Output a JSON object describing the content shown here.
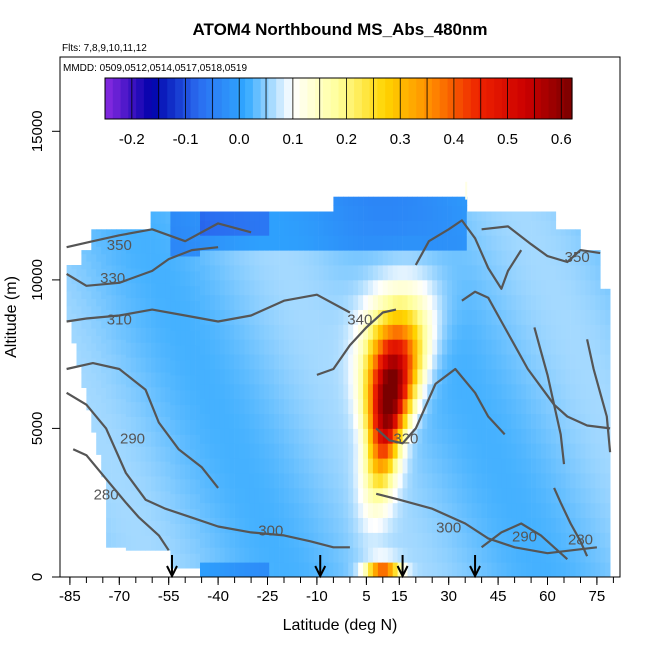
{
  "chart_data": {
    "type": "heatmap",
    "title": "ATOM4 Northbound MS_Abs_480nm",
    "flights_label": "Flts: 7,8,9,10,11,12",
    "dates_label": "MMDD: 0509,0512,0514,0517,0518,0519",
    "xlabel": "Latitude (deg N)",
    "ylabel": "Altitude (m)",
    "xlim": [
      -88,
      82
    ],
    "ylim": [
      0,
      17500
    ],
    "x_ticks": [
      -85,
      -70,
      -55,
      -40,
      -25,
      -10,
      5,
      15,
      30,
      45,
      60,
      75
    ],
    "y_ticks": [
      0,
      5000,
      10000,
      15000
    ],
    "colorbar": {
      "ticks": [
        -0.2,
        -0.1,
        0.0,
        0.1,
        0.2,
        0.3,
        0.4,
        0.5,
        0.6
      ],
      "range": [
        -0.25,
        0.62
      ],
      "colors": [
        "#8a2be2",
        "#0000aa",
        "#2a6cf0",
        "#2fa8ff",
        "#ffffff",
        "#ffff9a",
        "#ffd400",
        "#ff8a00",
        "#ee2200",
        "#cc0000",
        "#7a0000"
      ]
    },
    "contour_levels": [
      280,
      290,
      300,
      310,
      320,
      330,
      340,
      350
    ],
    "arrow_latitudes": [
      -54,
      -9,
      16,
      38
    ],
    "grid": false,
    "legend": "colorbar top-inside"
  }
}
